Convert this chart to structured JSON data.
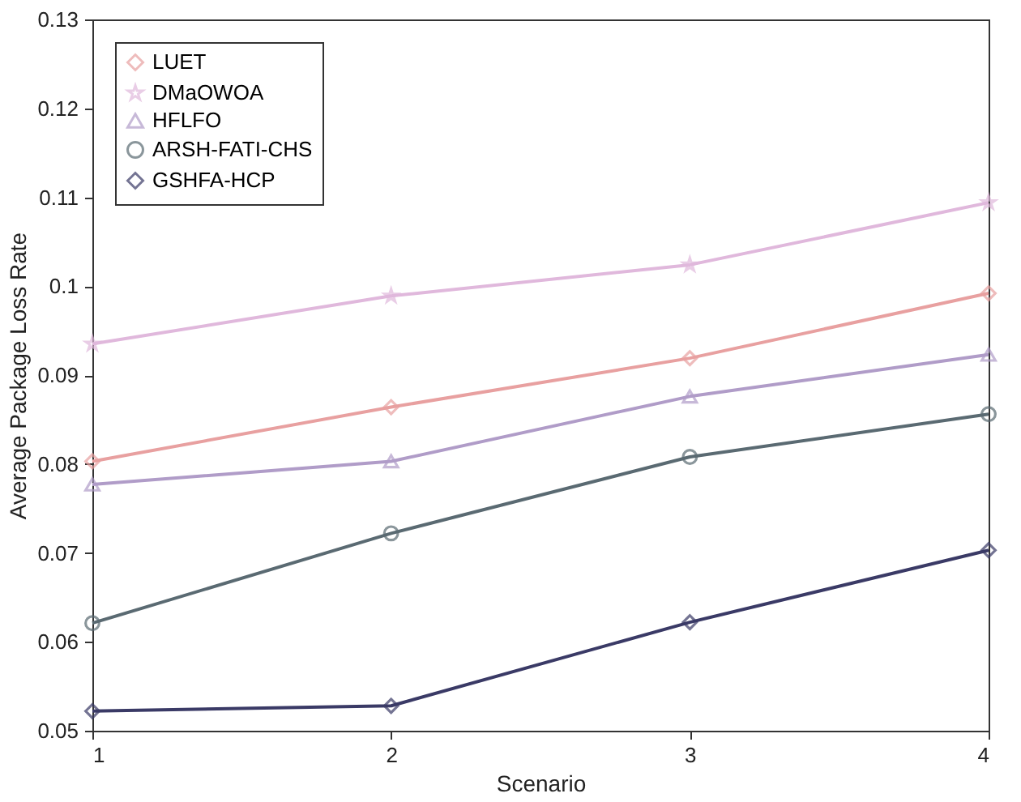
{
  "chart_data": {
    "type": "line",
    "xlabel": "Scenario",
    "ylabel": "Average Package Loss Rate",
    "x": [
      1,
      2,
      3,
      4
    ],
    "xlim": [
      1,
      4
    ],
    "xticks": [
      1,
      2,
      3,
      4
    ],
    "ylim": [
      0.05,
      0.13
    ],
    "yticks": [
      0.05,
      0.06,
      0.07,
      0.08,
      0.09,
      0.1,
      0.11,
      0.12,
      0.13
    ],
    "grid": false,
    "legend": "top left",
    "line_style": "solid",
    "series": [
      {
        "name": "LUET",
        "color": "#e8a0a0",
        "marker": "diamond",
        "values": [
          0.0803,
          0.0864,
          0.0919,
          0.0992
        ]
      },
      {
        "name": "DMaOWOA",
        "color": "#e0b8dc",
        "marker": "star",
        "values": [
          0.0935,
          0.0989,
          0.1024,
          0.1094
        ]
      },
      {
        "name": "HFLFO",
        "color": "#b09cc8",
        "marker": "triangle",
        "values": [
          0.0777,
          0.0803,
          0.0876,
          0.0923
        ]
      },
      {
        "name": "ARSH-FATI-CHS",
        "color": "#5a6a72",
        "marker": "circle",
        "values": [
          0.0621,
          0.0722,
          0.0808,
          0.0856
        ]
      },
      {
        "name": "GSHFA-HCP",
        "color": "#3a3a66",
        "marker": "diamond",
        "values": [
          0.0522,
          0.0528,
          0.0622,
          0.0703
        ]
      }
    ]
  }
}
